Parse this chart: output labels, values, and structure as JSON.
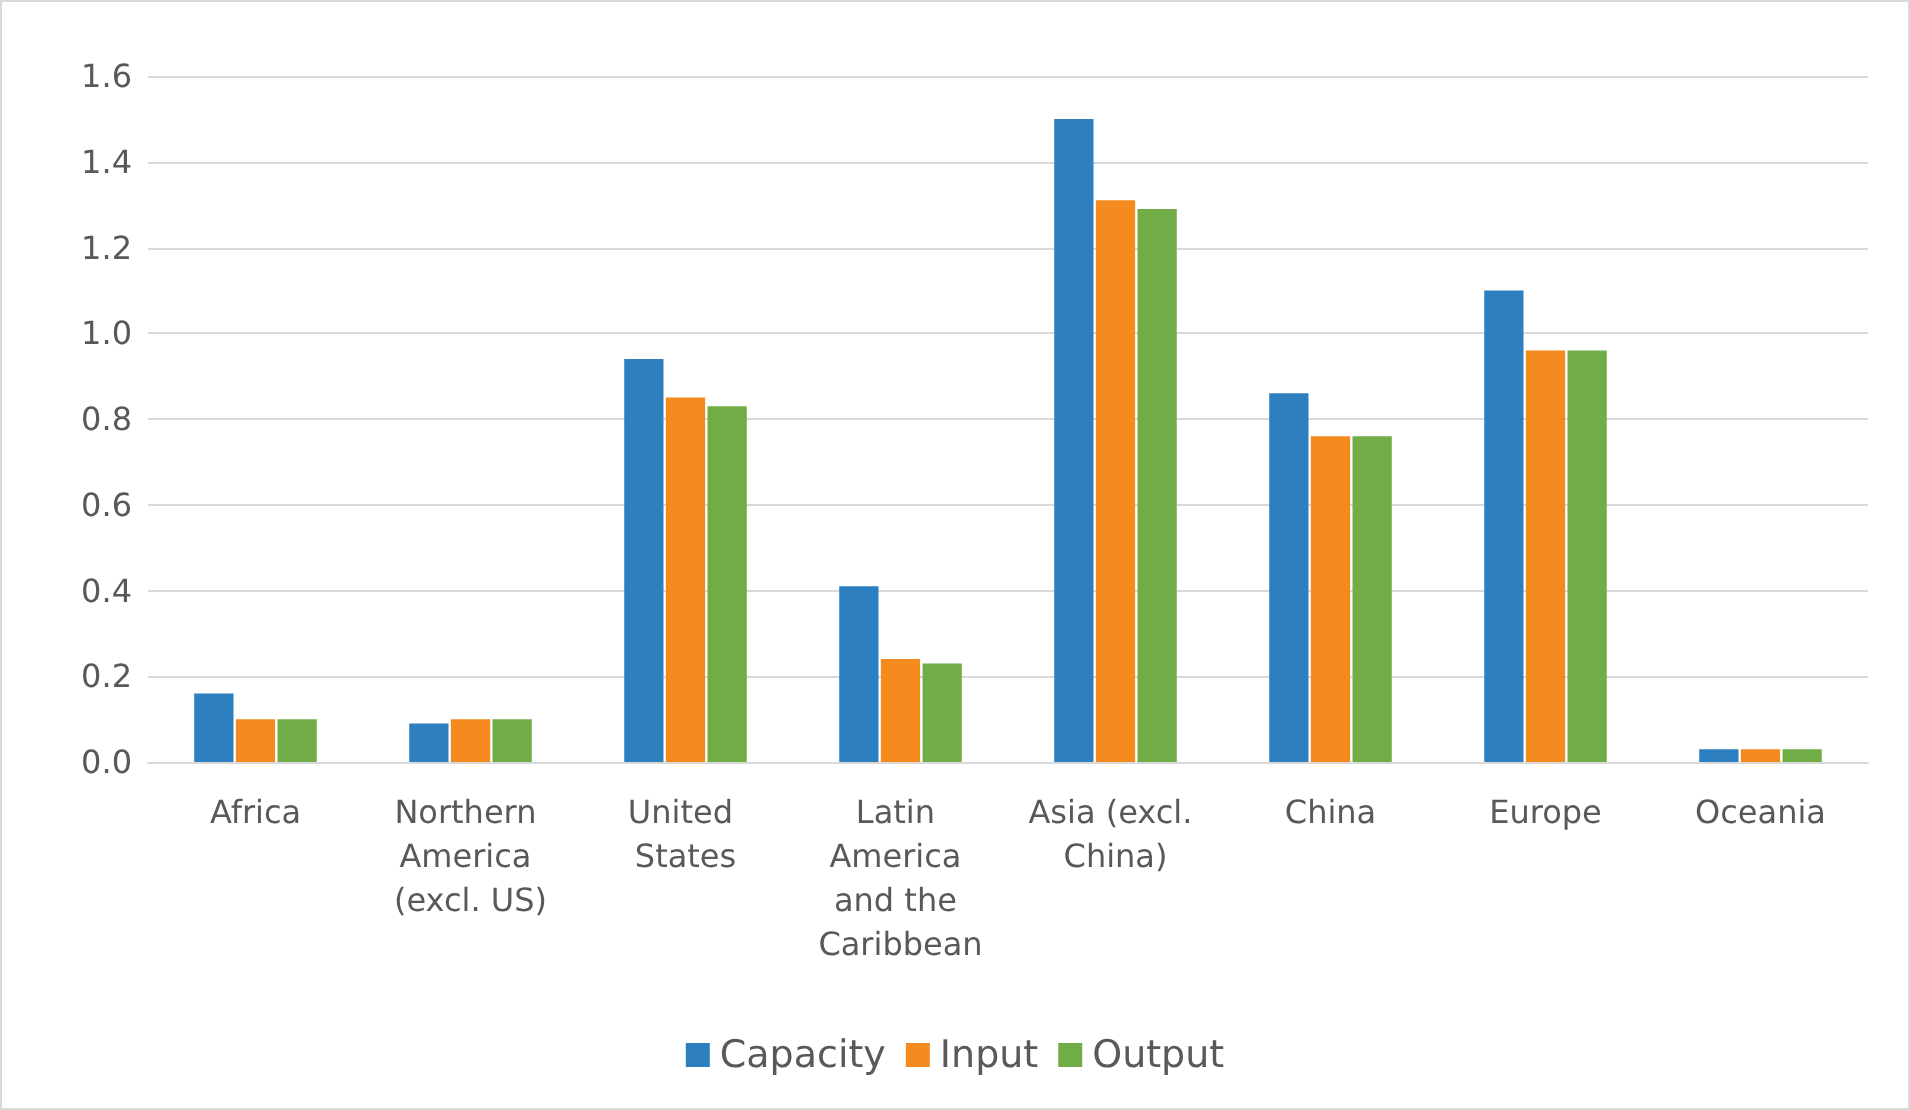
{
  "chart_data": {
    "type": "bar",
    "categories": [
      "Africa",
      "Northern America (excl. US)",
      "United States",
      "Latin America and the Caribbean",
      "Asia (excl. China)",
      "China",
      "Europe",
      "Oceania"
    ],
    "series": [
      {
        "name": "Capacity",
        "color": "#2e7fc0",
        "values": [
          0.16,
          0.09,
          0.94,
          0.41,
          1.5,
          0.86,
          1.1,
          0.03
        ]
      },
      {
        "name": "Input",
        "color": "#f58a1e",
        "values": [
          0.1,
          0.1,
          0.85,
          0.24,
          1.31,
          0.76,
          0.96,
          0.03
        ]
      },
      {
        "name": "Output",
        "color": "#70ad47",
        "values": [
          0.1,
          0.1,
          0.83,
          0.23,
          1.29,
          0.76,
          0.96,
          0.03
        ]
      }
    ],
    "ylim": [
      0,
      1.6
    ],
    "yticks": [
      {
        "value": 0,
        "label": "0.0"
      },
      0.2,
      0.4,
      0.6,
      0.8,
      {
        "value": 1,
        "label": "1.0"
      },
      1.2,
      1.4,
      1.6
    ],
    "grid": "y",
    "legend": "bottom"
  }
}
